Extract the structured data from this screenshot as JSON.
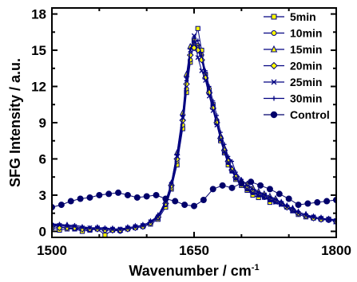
{
  "chart_data": {
    "type": "line",
    "xlabel_main": "Wavenumber  /  cm",
    "xlabel_sup": "-1",
    "ylabel": "SFG Intensity  /  a.u.",
    "xlim": [
      1500,
      1800
    ],
    "ylim": [
      -0.5,
      18.5
    ],
    "xticks": [
      1500,
      1650,
      1800
    ],
    "xtick_labels": [
      "1500",
      "1650",
      "1800"
    ],
    "yticks": [
      0,
      3,
      6,
      9,
      12,
      15,
      18
    ],
    "ytick_labels": [
      "0",
      "3",
      "6",
      "9",
      "12",
      "15",
      "18"
    ],
    "x_minor_step": 50,
    "y_minor_step": 1.5,
    "legend_position": "top-right",
    "colors": {
      "line": "#000080",
      "yellow": "#ffff00",
      "dark": "#00006a"
    },
    "series": [
      {
        "name": "5min",
        "marker": "square",
        "fill": "#ffff00",
        "x": [
          1500,
          1508,
          1516,
          1524,
          1532,
          1540,
          1548,
          1556,
          1564,
          1572,
          1580,
          1588,
          1596,
          1604,
          1612,
          1620,
          1626,
          1632,
          1638,
          1642,
          1646,
          1650,
          1654,
          1658,
          1662,
          1666,
          1670,
          1674,
          1678,
          1682,
          1686,
          1690,
          1694,
          1700,
          1706,
          1712,
          1718,
          1724,
          1730,
          1736,
          1742,
          1748,
          1754,
          1760,
          1768,
          1776,
          1784,
          1792,
          1800
        ],
        "y": [
          0.3,
          0.1,
          0.2,
          0.2,
          0,
          0.1,
          0.2,
          -0.3,
          0.1,
          0.1,
          0.2,
          0.3,
          0.4,
          0.6,
          1.0,
          2.0,
          3.5,
          5.5,
          8.5,
          11.5,
          14.0,
          15.8,
          16.8,
          15.0,
          13.0,
          11.5,
          10.5,
          9.0,
          7.5,
          6.5,
          5.5,
          5.0,
          4.3,
          3.8,
          3.4,
          3.0,
          2.8,
          3.0,
          2.4,
          2.5,
          2.3,
          2.0,
          1.7,
          1.4,
          1.2,
          1.1,
          1.0,
          1.0,
          0.8
        ]
      },
      {
        "name": "10min",
        "marker": "circle",
        "fill": "#ffff00",
        "x": [
          1500,
          1508,
          1516,
          1524,
          1532,
          1540,
          1548,
          1556,
          1564,
          1572,
          1580,
          1588,
          1596,
          1604,
          1612,
          1620,
          1626,
          1632,
          1638,
          1642,
          1646,
          1650,
          1654,
          1658,
          1662,
          1666,
          1670,
          1674,
          1678,
          1682,
          1686,
          1690,
          1694,
          1700,
          1706,
          1712,
          1718,
          1724,
          1730,
          1736,
          1742,
          1748,
          1754,
          1760,
          1768,
          1776,
          1784,
          1792,
          1800
        ],
        "y": [
          0.5,
          0.4,
          0.3,
          0.2,
          0.2,
          0.1,
          0.2,
          0.1,
          0.1,
          0.0,
          0.2,
          0.3,
          0.4,
          0.7,
          1.1,
          2.2,
          3.6,
          5.8,
          8.8,
          11.8,
          14.2,
          15.5,
          15.4,
          14.6,
          13.0,
          11.8,
          10.4,
          9.2,
          7.8,
          6.6,
          5.7,
          5.0,
          4.4,
          3.9,
          3.5,
          3.2,
          3.0,
          2.8,
          2.6,
          2.5,
          2.3,
          2.0,
          1.8,
          1.5,
          1.3,
          1.1,
          1.0,
          0.9,
          0.9
        ]
      },
      {
        "name": "15min",
        "marker": "triangle",
        "fill": "#ffff00",
        "x": [
          1500,
          1508,
          1516,
          1524,
          1532,
          1540,
          1548,
          1556,
          1564,
          1572,
          1580,
          1588,
          1596,
          1604,
          1612,
          1620,
          1626,
          1632,
          1638,
          1642,
          1646,
          1650,
          1654,
          1658,
          1662,
          1666,
          1670,
          1674,
          1678,
          1682,
          1686,
          1690,
          1694,
          1700,
          1706,
          1712,
          1718,
          1724,
          1730,
          1736,
          1742,
          1748,
          1754,
          1760,
          1768,
          1776,
          1784,
          1792,
          1800
        ],
        "y": [
          0.6,
          0.5,
          0.5,
          0.4,
          0.3,
          0.2,
          0.3,
          0.2,
          0.2,
          0.1,
          0.3,
          0.4,
          0.5,
          0.8,
          1.3,
          2.5,
          4.0,
          6.5,
          9.8,
          13.0,
          15.3,
          15.6,
          15.2,
          14.3,
          12.8,
          11.6,
          10.3,
          9.2,
          7.9,
          6.9,
          6.0,
          5.2,
          4.6,
          4.2,
          3.9,
          3.6,
          3.3,
          3.1,
          2.9,
          2.7,
          2.4,
          2.1,
          1.9,
          1.6,
          1.4,
          1.2,
          1.1,
          1.0,
          0.8
        ]
      },
      {
        "name": "20min",
        "marker": "diamond",
        "fill": "#ffff00",
        "x": [
          1500,
          1508,
          1516,
          1524,
          1532,
          1540,
          1548,
          1556,
          1564,
          1572,
          1580,
          1588,
          1596,
          1604,
          1612,
          1620,
          1626,
          1632,
          1638,
          1642,
          1646,
          1650,
          1654,
          1658,
          1662,
          1666,
          1670,
          1674,
          1678,
          1682,
          1686,
          1690,
          1694,
          1700,
          1706,
          1712,
          1718,
          1724,
          1730,
          1736,
          1742,
          1748,
          1754,
          1760,
          1768,
          1776,
          1784,
          1792,
          1800
        ],
        "y": [
          0.4,
          0.3,
          0.3,
          0.3,
          0.2,
          0.2,
          0.2,
          0.1,
          0.1,
          0.1,
          0.2,
          0.3,
          0.4,
          0.7,
          1.2,
          2.3,
          3.8,
          6.0,
          9.2,
          12.2,
          14.6,
          15.2,
          15.0,
          14.2,
          12.7,
          11.5,
          10.2,
          9.0,
          7.7,
          6.7,
          5.8,
          5.1,
          4.5,
          4.0,
          3.6,
          3.3,
          3.1,
          2.9,
          2.7,
          2.5,
          2.3,
          2.0,
          1.8,
          1.5,
          1.3,
          1.1,
          1.0,
          1.0,
          0.8
        ]
      },
      {
        "name": "25min",
        "marker": "x",
        "fill": "none",
        "x": [
          1500,
          1508,
          1516,
          1524,
          1532,
          1540,
          1548,
          1556,
          1564,
          1572,
          1580,
          1588,
          1596,
          1604,
          1612,
          1620,
          1626,
          1632,
          1638,
          1642,
          1646,
          1650,
          1654,
          1658,
          1662,
          1666,
          1670,
          1674,
          1678,
          1682,
          1686,
          1690,
          1694,
          1700,
          1706,
          1712,
          1718,
          1724,
          1730,
          1736,
          1742,
          1748,
          1754,
          1760,
          1768,
          1776,
          1784,
          1792,
          1800
        ],
        "y": [
          0.5,
          0.5,
          0.4,
          0.4,
          0.3,
          0.3,
          0.3,
          0.2,
          0.2,
          0.2,
          0.3,
          0.4,
          0.5,
          0.8,
          1.2,
          2.4,
          3.9,
          6.2,
          9.4,
          12.6,
          15.0,
          16.2,
          14.4,
          13.3,
          12.5,
          11.2,
          10.0,
          8.8,
          7.6,
          6.6,
          5.7,
          5.0,
          4.4,
          3.9,
          3.5,
          3.2,
          3.0,
          2.8,
          2.6,
          2.4,
          2.2,
          2.0,
          1.7,
          1.5,
          1.3,
          1.2,
          1.1,
          1.0,
          0.9
        ]
      },
      {
        "name": "30min",
        "marker": "plus",
        "fill": "none",
        "x": [
          1500,
          1508,
          1516,
          1524,
          1532,
          1540,
          1548,
          1556,
          1564,
          1572,
          1580,
          1588,
          1596,
          1604,
          1612,
          1620,
          1626,
          1632,
          1638,
          1642,
          1646,
          1650,
          1654,
          1658,
          1662,
          1666,
          1670,
          1674,
          1678,
          1682,
          1686,
          1690,
          1694,
          1700,
          1706,
          1712,
          1718,
          1724,
          1730,
          1736,
          1742,
          1748,
          1754,
          1760,
          1768,
          1776,
          1784,
          1792,
          1800
        ],
        "y": [
          0.6,
          0.6,
          0.5,
          0.5,
          0.4,
          0.3,
          0.3,
          0.3,
          0.2,
          0.2,
          0.3,
          0.4,
          0.5,
          0.8,
          1.3,
          2.5,
          4.0,
          6.4,
          9.6,
          12.8,
          15.1,
          15.6,
          15.8,
          14.6,
          13.3,
          12.0,
          10.8,
          9.6,
          8.2,
          7.2,
          6.2,
          5.8,
          4.9,
          4.3,
          3.8,
          3.5,
          3.2,
          3.0,
          2.8,
          2.6,
          2.4,
          2.1,
          1.9,
          1.6,
          1.4,
          1.2,
          1.1,
          1.0,
          1.0
        ]
      },
      {
        "name": "Control",
        "marker": "dot",
        "fill": "#00006a",
        "x": [
          1500,
          1510,
          1520,
          1530,
          1540,
          1550,
          1560,
          1570,
          1580,
          1590,
          1600,
          1610,
          1620,
          1630,
          1640,
          1650,
          1660,
          1670,
          1680,
          1690,
          1700,
          1710,
          1720,
          1730,
          1740,
          1750,
          1760,
          1770,
          1780,
          1790,
          1800
        ],
        "y": [
          2.0,
          2.2,
          2.5,
          2.7,
          2.8,
          3.0,
          3.1,
          3.2,
          3.0,
          2.8,
          2.9,
          3.0,
          2.7,
          2.5,
          2.2,
          2.1,
          2.6,
          3.5,
          3.8,
          3.6,
          4.0,
          4.1,
          3.8,
          3.5,
          3.1,
          2.7,
          2.2,
          2.3,
          2.4,
          2.5,
          2.6
        ]
      }
    ]
  }
}
